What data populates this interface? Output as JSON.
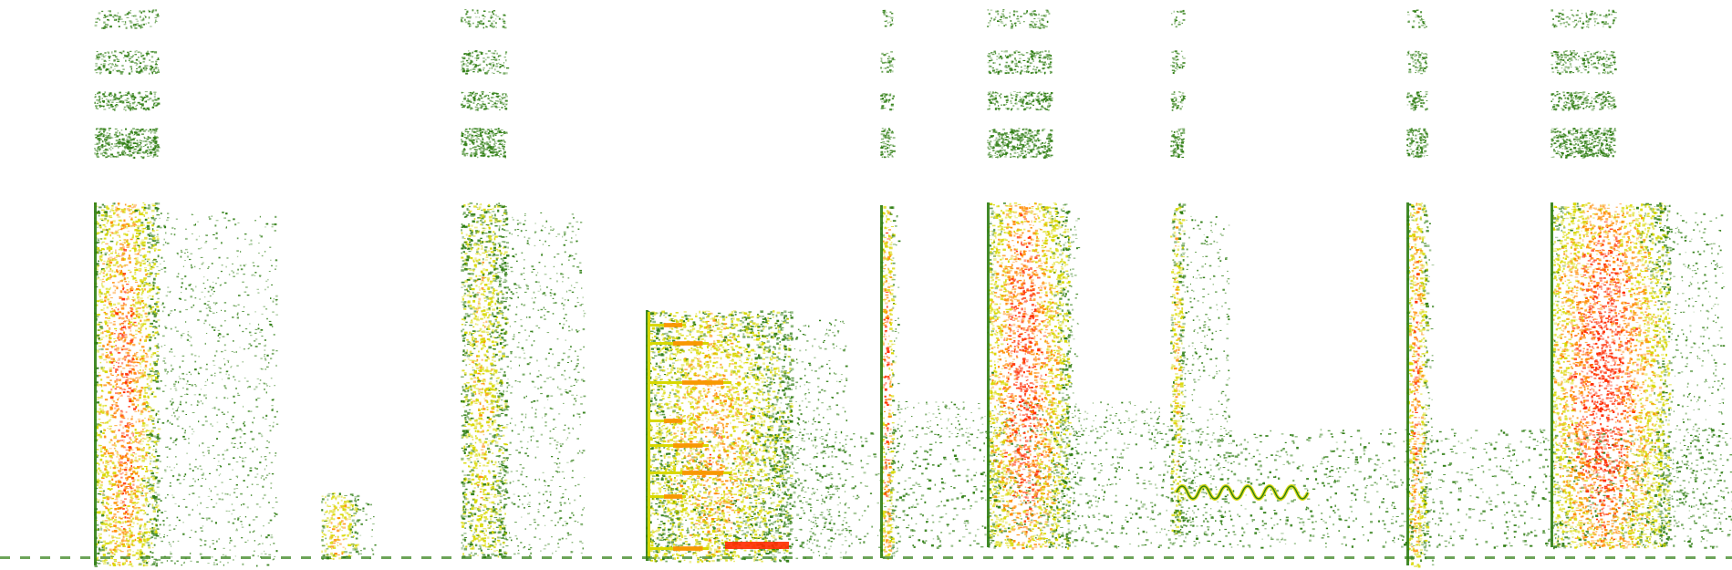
{
  "image": {
    "kind": "spectrogram",
    "background": "#ffffff",
    "palette": {
      "low": "#2e7d12",
      "mid": "#d8d800",
      "high": "#ff8a00",
      "peak": "#ff2a00"
    },
    "frequency_band_gap": "present",
    "events": [
      {
        "id": "burst-1",
        "intensity": "strong",
        "shape": "wide-broadband",
        "upper_harmonics": true
      },
      {
        "id": "tick-1",
        "intensity": "medium",
        "shape": "low-short",
        "upper_harmonics": false
      },
      {
        "id": "burst-2",
        "intensity": "medium",
        "shape": "ragged-broadband",
        "upper_harmonics": true
      },
      {
        "id": "pulse-train",
        "intensity": "strong",
        "shape": "stepped-harmonic-lines",
        "upper_harmonics": false
      },
      {
        "id": "click-1",
        "intensity": "strong",
        "shape": "narrow-vertical",
        "upper_harmonics": true
      },
      {
        "id": "double-strike",
        "intensity": "strong",
        "shape": "twin-narrow-columns",
        "upper_harmonics": true
      },
      {
        "id": "wavering-tone",
        "intensity": "medium",
        "shape": "narrow-wobbling-line",
        "upper_harmonics": true
      },
      {
        "id": "click-2",
        "intensity": "strong",
        "shape": "narrow-vertical",
        "upper_harmonics": true
      },
      {
        "id": "burst-3",
        "intensity": "strong",
        "shape": "wide-broadband",
        "upper_harmonics": true
      }
    ]
  }
}
